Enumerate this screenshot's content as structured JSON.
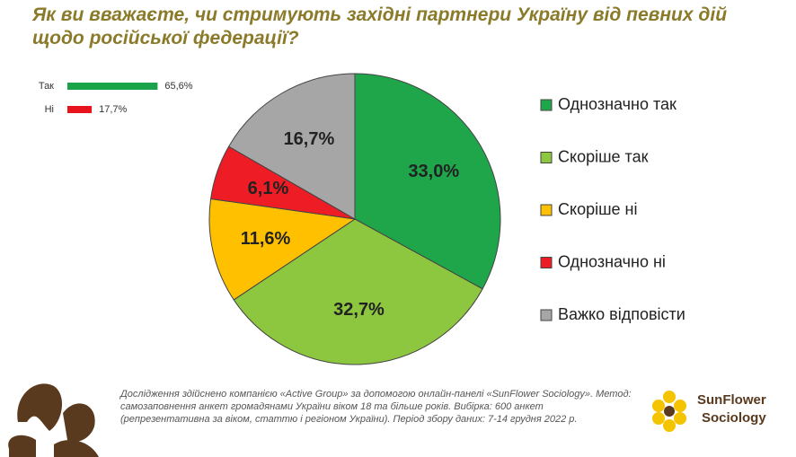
{
  "chart_data": [
    {
      "type": "bar",
      "orientation": "horizontal",
      "categories": [
        "Так",
        "Ні"
      ],
      "values": [
        65.6,
        17.7
      ],
      "value_labels": [
        "65,6%",
        "17,7%"
      ],
      "colors": [
        "#1aa34a",
        "#e8141c"
      ]
    },
    {
      "type": "pie",
      "title": "Як ви вважаєте, чи стримують західні партнери Україну від певних дій щодо російської федерації?",
      "categories": [
        "Однозначно так",
        "Скоріше так",
        "Скоріше ні",
        "Однозначно ні",
        "Важко відповісти"
      ],
      "values": [
        33.0,
        32.7,
        11.6,
        6.1,
        16.7
      ],
      "value_labels": [
        "33,0%",
        "32,7%",
        "11,6%",
        "6,1%",
        "16,7%"
      ],
      "colors": [
        "#1fa64a",
        "#8dc63f",
        "#ffc000",
        "#ee1c25",
        "#a6a6a6"
      ],
      "legend": "right"
    }
  ],
  "footnote": "Дослідження здійснено компанією «Active Group» за допомогою онлайн-панелі «SunFlower Sociology». Метод: самозаповнення анкет громадянами України віком 18 та більше років. Вибірка: 600 анкет (репрезентативна за віком, статтю і регіоном України). Період збору даних: 7-14 грудня 2022 р.",
  "logo": {
    "line1": "SunFlower",
    "line2": "Sociology"
  }
}
